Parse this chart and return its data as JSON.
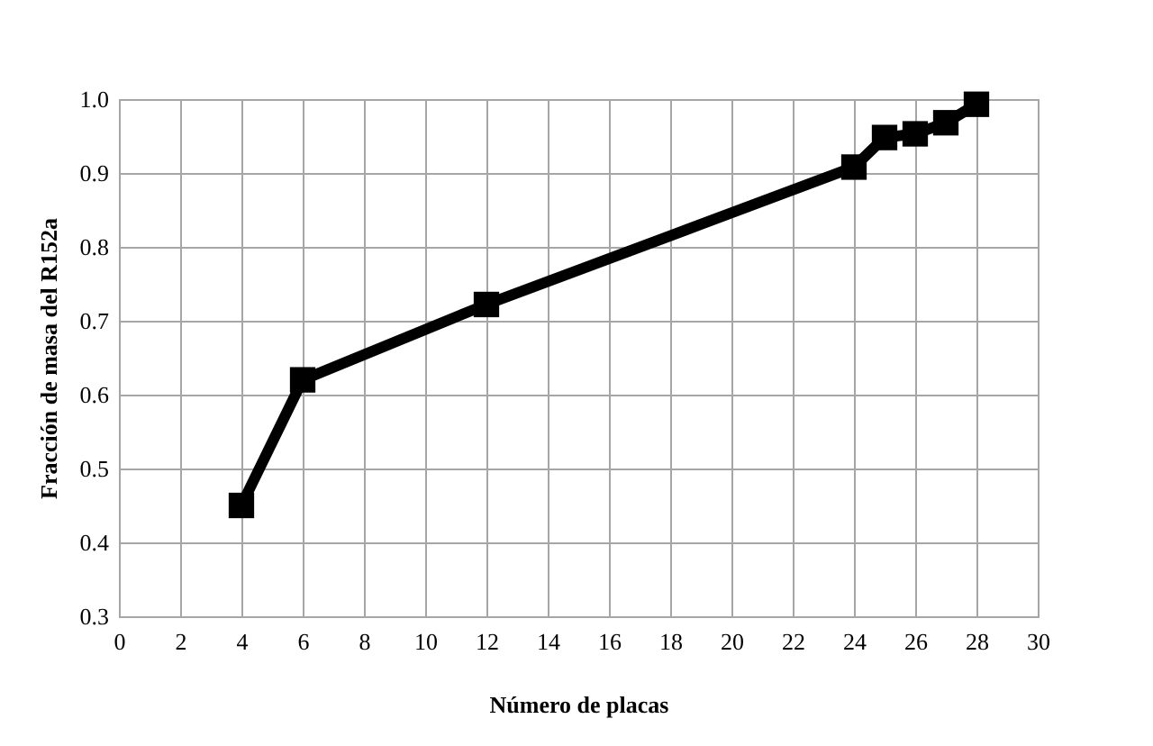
{
  "chart_data": {
    "type": "line",
    "xlabel": "Número de placas",
    "ylabel": "Fracción de masa del R152a",
    "x": [
      4,
      6,
      12,
      24,
      25,
      26,
      27,
      28
    ],
    "series": [
      {
        "color": "#000000",
        "values": [
          0.45,
          0.62,
          0.722,
          0.908,
          0.948,
          0.953,
          0.968,
          0.993
        ]
      }
    ],
    "xlim": [
      0,
      30
    ],
    "xticks": [
      0,
      2,
      4,
      6,
      8,
      10,
      12,
      14,
      16,
      18,
      20,
      22,
      24,
      26,
      28,
      30
    ],
    "ylim": [
      0.3,
      1.0
    ],
    "yticks": [
      {
        "value": 0.3,
        "label": "0.3"
      },
      {
        "value": 0.4,
        "label": "0.4"
      },
      {
        "value": 0.5,
        "label": "0.5"
      },
      {
        "value": 0.6,
        "label": "0.6"
      },
      {
        "value": 0.7,
        "label": "0.7"
      },
      {
        "value": 0.8,
        "label": "0.8"
      },
      {
        "value": 0.9,
        "label": "0.9"
      },
      {
        "value": 1.0,
        "label": "1.0"
      }
    ],
    "grid": true,
    "marker": "square",
    "line_style": "solid"
  }
}
